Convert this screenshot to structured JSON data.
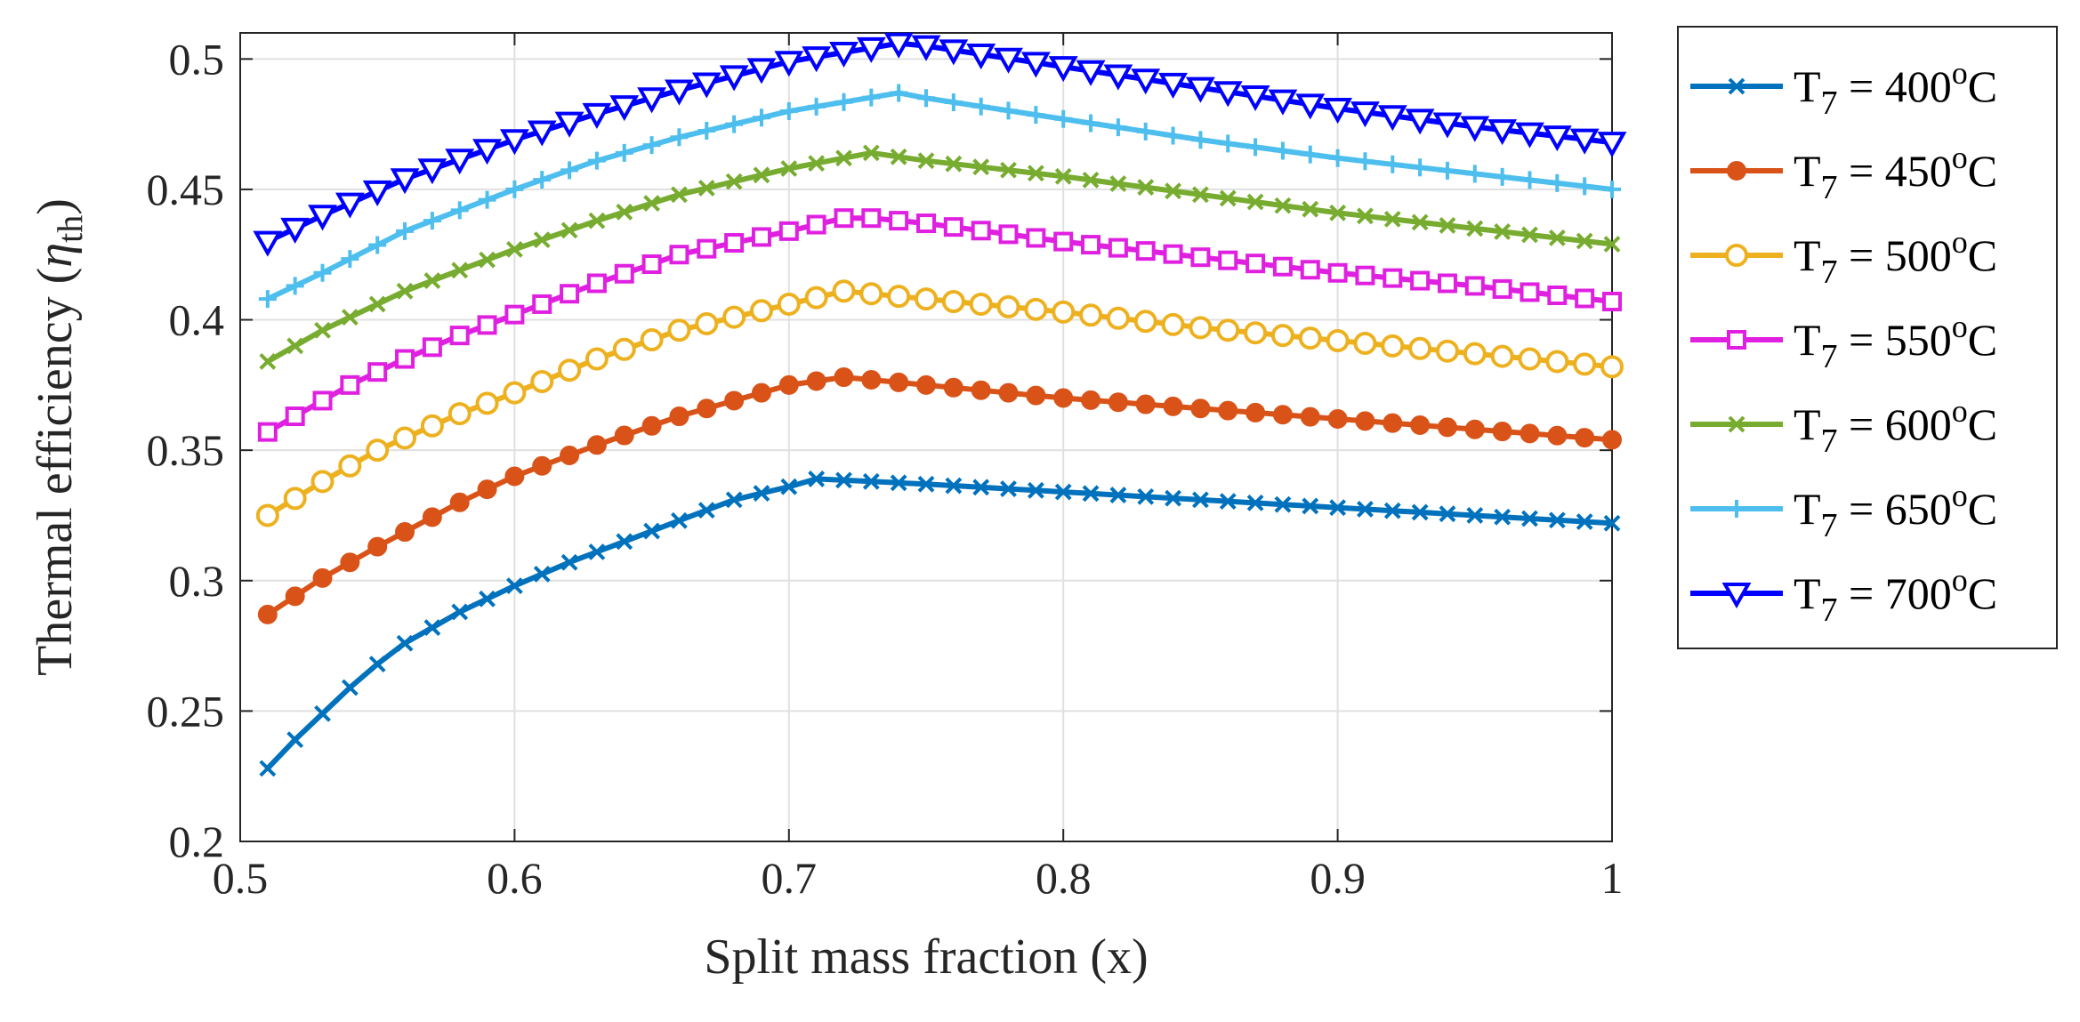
{
  "chart_data": {
    "type": "line",
    "title": "",
    "xlabel": "Split mass fraction (x)",
    "ylabel": {
      "main": "Thermal efficiency (",
      "symbol": "η",
      "subscript": "th",
      "close": ")"
    },
    "xlim": [
      0.5,
      1.0
    ],
    "ylim": [
      0.2,
      0.51
    ],
    "xticks": [
      0.5,
      0.6,
      0.7,
      0.8,
      0.9,
      1.0
    ],
    "xtick_labels": [
      "0.5",
      "0.6",
      "0.7",
      "0.8",
      "0.9",
      "1"
    ],
    "yticks": [
      0.2,
      0.25,
      0.3,
      0.35,
      0.4,
      0.45,
      0.5
    ],
    "ytick_labels": [
      "0.2",
      "0.25",
      "0.3",
      "0.35",
      "0.4",
      "0.45",
      "0.5"
    ],
    "grid": true,
    "legend_position": "outside-right",
    "x_range": {
      "start": 0.51,
      "end": 1.0,
      "step": 0.01
    },
    "series": [
      {
        "name": "T7 = 400°C",
        "label": {
          "prefix": "T",
          "sub": "7",
          "eq": " = 400",
          "sup": "o",
          "unit": "C"
        },
        "color": "#0072BD",
        "marker": "x",
        "anchors": [
          [
            0.51,
            0.228
          ],
          [
            0.52,
            0.239
          ],
          [
            0.53,
            0.249
          ],
          [
            0.54,
            0.259
          ],
          [
            0.55,
            0.268
          ],
          [
            0.56,
            0.276
          ],
          [
            0.57,
            0.282
          ],
          [
            0.58,
            0.288
          ],
          [
            0.59,
            0.293
          ],
          [
            0.6,
            0.298
          ],
          [
            0.62,
            0.307
          ],
          [
            0.65,
            0.319
          ],
          [
            0.68,
            0.331
          ],
          [
            0.7,
            0.336
          ],
          [
            0.71,
            0.339
          ],
          [
            0.75,
            0.337
          ],
          [
            0.8,
            0.334
          ],
          [
            0.85,
            0.331
          ],
          [
            0.9,
            0.328
          ],
          [
            0.95,
            0.325
          ],
          [
            1.0,
            0.322
          ]
        ]
      },
      {
        "name": "T7 = 450°C",
        "label": {
          "prefix": "T",
          "sub": "7",
          "eq": " = 450",
          "sup": "o",
          "unit": "C"
        },
        "color": "#D95319",
        "marker": "o-filled",
        "anchors": [
          [
            0.51,
            0.287
          ],
          [
            0.52,
            0.294
          ],
          [
            0.53,
            0.301
          ],
          [
            0.55,
            0.313
          ],
          [
            0.58,
            0.33
          ],
          [
            0.6,
            0.34
          ],
          [
            0.63,
            0.352
          ],
          [
            0.66,
            0.363
          ],
          [
            0.7,
            0.375
          ],
          [
            0.72,
            0.378
          ],
          [
            0.75,
            0.375
          ],
          [
            0.8,
            0.37
          ],
          [
            0.85,
            0.366
          ],
          [
            0.9,
            0.362
          ],
          [
            0.95,
            0.358
          ],
          [
            1.0,
            0.354
          ]
        ]
      },
      {
        "name": "T7 = 500°C",
        "label": {
          "prefix": "T",
          "sub": "7",
          "eq": " = 500",
          "sup": "o",
          "unit": "C"
        },
        "color": "#EDB120",
        "marker": "o",
        "anchors": [
          [
            0.51,
            0.325
          ],
          [
            0.53,
            0.338
          ],
          [
            0.55,
            0.35
          ],
          [
            0.58,
            0.364
          ],
          [
            0.6,
            0.372
          ],
          [
            0.63,
            0.385
          ],
          [
            0.66,
            0.396
          ],
          [
            0.7,
            0.406
          ],
          [
            0.72,
            0.411
          ],
          [
            0.75,
            0.408
          ],
          [
            0.8,
            0.403
          ],
          [
            0.85,
            0.397
          ],
          [
            0.9,
            0.392
          ],
          [
            0.95,
            0.387
          ],
          [
            1.0,
            0.382
          ]
        ]
      },
      {
        "name": "T7 = 550°C",
        "label": {
          "prefix": "T",
          "sub": "7",
          "eq": " = 550",
          "sup": "o",
          "unit": "C"
        },
        "color": "#E020E0",
        "marker": "s",
        "anchors": [
          [
            0.51,
            0.357
          ],
          [
            0.52,
            0.363
          ],
          [
            0.54,
            0.375
          ],
          [
            0.56,
            0.385
          ],
          [
            0.58,
            0.394
          ],
          [
            0.6,
            0.402
          ],
          [
            0.63,
            0.414
          ],
          [
            0.66,
            0.425
          ],
          [
            0.7,
            0.434
          ],
          [
            0.72,
            0.439
          ],
          [
            0.73,
            0.439
          ],
          [
            0.75,
            0.437
          ],
          [
            0.8,
            0.43
          ],
          [
            0.85,
            0.424
          ],
          [
            0.9,
            0.418
          ],
          [
            0.95,
            0.413
          ],
          [
            1.0,
            0.407
          ]
        ]
      },
      {
        "name": "T7 = 600°C",
        "label": {
          "prefix": "T",
          "sub": "7",
          "eq": " = 600",
          "sup": "o",
          "unit": "C"
        },
        "color": "#77AC30",
        "marker": "x",
        "anchors": [
          [
            0.51,
            0.384
          ],
          [
            0.53,
            0.396
          ],
          [
            0.56,
            0.411
          ],
          [
            0.6,
            0.427
          ],
          [
            0.63,
            0.438
          ],
          [
            0.66,
            0.448
          ],
          [
            0.7,
            0.458
          ],
          [
            0.73,
            0.464
          ],
          [
            0.75,
            0.461
          ],
          [
            0.8,
            0.455
          ],
          [
            0.85,
            0.448
          ],
          [
            0.9,
            0.441
          ],
          [
            0.95,
            0.435
          ],
          [
            1.0,
            0.429
          ]
        ]
      },
      {
        "name": "T7 = 650°C",
        "label": {
          "prefix": "T",
          "sub": "7",
          "eq": " = 650",
          "sup": "o",
          "unit": "C"
        },
        "color": "#4DBEEE",
        "marker": "+",
        "anchors": [
          [
            0.51,
            0.408
          ],
          [
            0.53,
            0.418
          ],
          [
            0.56,
            0.434
          ],
          [
            0.6,
            0.45
          ],
          [
            0.63,
            0.461
          ],
          [
            0.66,
            0.47
          ],
          [
            0.7,
            0.48
          ],
          [
            0.74,
            0.487
          ],
          [
            0.75,
            0.485
          ],
          [
            0.8,
            0.477
          ],
          [
            0.85,
            0.469
          ],
          [
            0.9,
            0.462
          ],
          [
            0.95,
            0.456
          ],
          [
            1.0,
            0.45
          ]
        ]
      },
      {
        "name": "T7 = 700°C",
        "label": {
          "prefix": "T",
          "sub": "7",
          "eq": " = 700",
          "sup": "o",
          "unit": "C"
        },
        "color": "#0000FF",
        "marker": "v",
        "anchors": [
          [
            0.51,
            0.43
          ],
          [
            0.53,
            0.44
          ],
          [
            0.56,
            0.454
          ],
          [
            0.6,
            0.469
          ],
          [
            0.63,
            0.479
          ],
          [
            0.66,
            0.488
          ],
          [
            0.7,
            0.499
          ],
          [
            0.74,
            0.506
          ],
          [
            0.75,
            0.505
          ],
          [
            0.8,
            0.497
          ],
          [
            0.85,
            0.489
          ],
          [
            0.9,
            0.481
          ],
          [
            0.95,
            0.474
          ],
          [
            1.0,
            0.468
          ]
        ]
      }
    ]
  }
}
